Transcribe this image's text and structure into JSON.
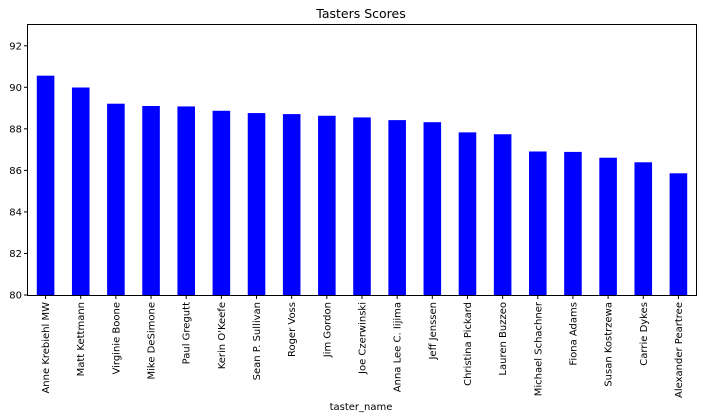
{
  "chart_data": {
    "type": "bar",
    "title": "Tasters Scores",
    "xlabel": "taster_name",
    "ylabel": "",
    "ylim": [
      80,
      93
    ],
    "yticks": [
      80,
      82,
      84,
      86,
      88,
      90,
      92
    ],
    "grid": false,
    "legend": "none",
    "bar_color": "#0000ff",
    "categories": [
      "Anne Krebiehl MW",
      "Matt Kettmann",
      "Virginie Boone",
      "Mike DeSimone",
      "Paul Gregutt",
      "Kerin O'Keefe",
      "Sean P. Sullivan",
      "Roger Voss",
      "Jim Gordon",
      "Joe Czerwinski",
      "Anna Lee C. Iijima",
      "Jeff Jenssen",
      "Christina Pickard",
      "Lauren Buzzeo",
      "Michael Schachner",
      "Fiona Adams",
      "Susan Kostrzewa",
      "Carrie Dykes",
      "Alexander Peartree"
    ],
    "values": [
      90.56,
      89.99,
      89.21,
      89.1,
      89.08,
      88.87,
      88.76,
      88.71,
      88.63,
      88.55,
      88.42,
      88.32,
      87.83,
      87.74,
      86.91,
      86.89,
      86.61,
      86.39,
      85.86
    ]
  }
}
